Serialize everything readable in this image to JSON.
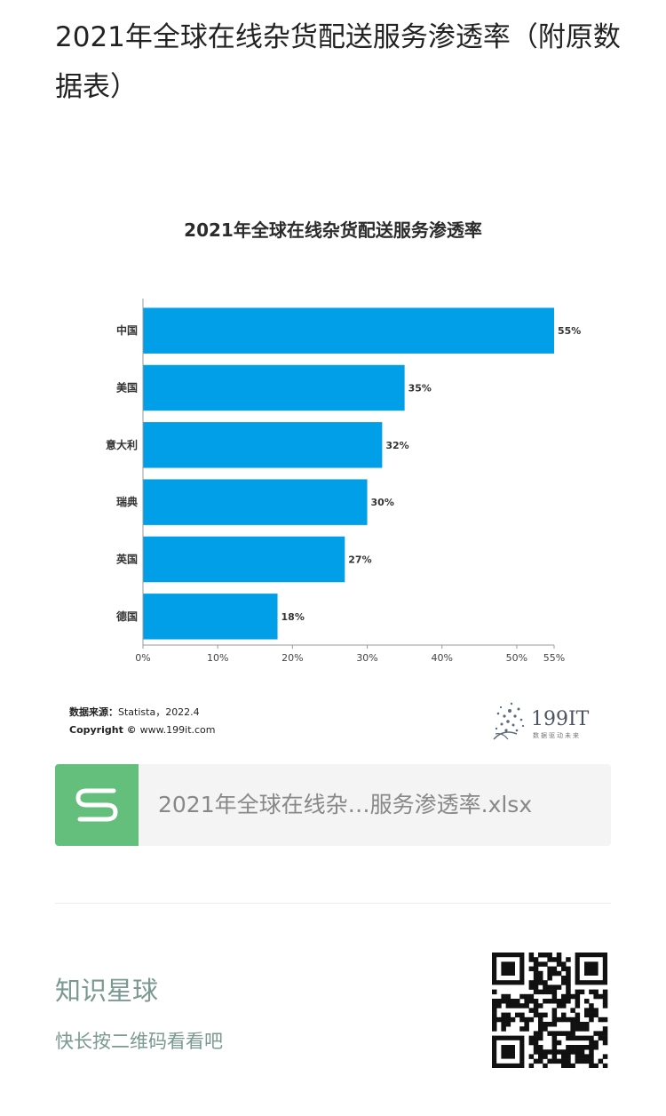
{
  "article": {
    "title": "2021年全球在线杂货配送服务渗透率（附原数据表）"
  },
  "chart_data": {
    "type": "bar",
    "orientation": "horizontal",
    "title": "2021年全球在线杂货配送服务渗透率",
    "categories": [
      "中国",
      "美国",
      "意大利",
      "瑞典",
      "英国",
      "德国"
    ],
    "values": [
      55,
      35,
      32,
      30,
      27,
      18
    ],
    "value_labels": [
      "55%",
      "35%",
      "32%",
      "30%",
      "27%",
      "18%"
    ],
    "x_ticks": [
      "0%",
      "10%",
      "20%",
      "30%",
      "40%",
      "50%",
      "55%"
    ],
    "x_tick_values": [
      0,
      10,
      20,
      30,
      40,
      50,
      55
    ],
    "xlim": [
      0,
      55
    ],
    "bar_color": "#009fe8",
    "grid": false,
    "source_label": "数据来源：",
    "source_text": "Statista，2022.4",
    "copyright_label": "Copyright ©",
    "copyright_text": "www.199it.com",
    "logo_text": "199IT",
    "logo_tagline": "数据驱动未来"
  },
  "attachment": {
    "icon": "spreadsheet-s-icon",
    "icon_color": "#64bf7c",
    "file_name": "2021年全球在线杂…服务渗透率.xlsx"
  },
  "planet": {
    "title": "知识星球",
    "subtitle": "快长按二维码看看吧",
    "qr_icon": "qr-code-icon"
  }
}
